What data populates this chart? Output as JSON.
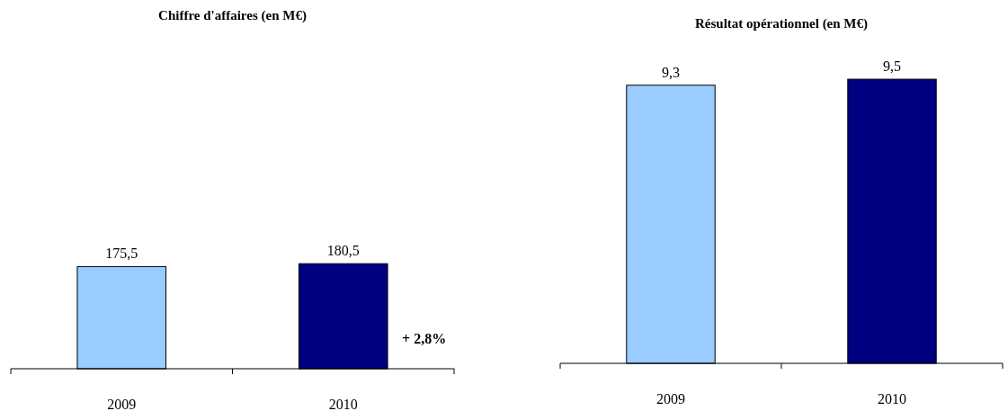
{
  "chart_data": [
    {
      "type": "bar",
      "title": "Chiffre d'affaires (en M€)",
      "categories": [
        "2009",
        "2010"
      ],
      "values": [
        175.5,
        180.5
      ],
      "value_labels": [
        "175,5",
        "180,5"
      ],
      "colors": [
        "#99ccff",
        "#000080"
      ],
      "annotations": [
        "+ 2,8%"
      ]
    },
    {
      "type": "bar",
      "title": "Résultat opérationnel (en M€)",
      "categories": [
        "2009",
        "2010"
      ],
      "values": [
        9.3,
        9.5
      ],
      "value_labels": [
        "9,3",
        "9,5"
      ],
      "colors": [
        "#99ccff",
        "#000080"
      ]
    }
  ]
}
